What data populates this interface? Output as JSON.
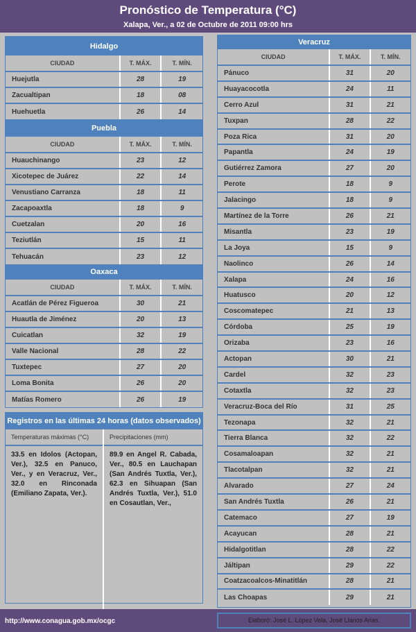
{
  "header": {
    "title": "Pronóstico de Temperatura (°C)",
    "subtitle": "Xalapa, Ver., a 02 de Octubre de 2011 09:00 hrs"
  },
  "columns": {
    "city": "CIUDAD",
    "max": "T. MÁX.",
    "min": "T. MÍN."
  },
  "hidalgo": {
    "name": "Hidalgo",
    "rows": [
      [
        "Huejutla",
        "28",
        "19"
      ],
      [
        "Zacualtipan",
        "18",
        "08"
      ],
      [
        "Huehuetla",
        "26",
        "14"
      ]
    ]
  },
  "puebla": {
    "name": "Puebla",
    "rows": [
      [
        "Huauchinango",
        "23",
        "12"
      ],
      [
        "Xicotepec de Juárez",
        "22",
        "14"
      ],
      [
        "Venustiano Carranza",
        "18",
        "11"
      ],
      [
        "Zacapoaxtla",
        "18",
        "9"
      ],
      [
        "Cuetzalan",
        "20",
        "16"
      ],
      [
        "Teziutlán",
        "15",
        "11"
      ],
      [
        "Tehuacán",
        "23",
        "12"
      ]
    ]
  },
  "oaxaca": {
    "name": "Oaxaca",
    "rows": [
      [
        "Acatlán de Pérez Figueroa",
        "30",
        "21"
      ],
      [
        "Huautla de Jiménez",
        "20",
        "13"
      ],
      [
        "Cuicatlan",
        "32",
        "19"
      ],
      [
        "Valle Nacional",
        "28",
        "22"
      ],
      [
        "Tuxtepec",
        "27",
        "20"
      ],
      [
        "Loma Bonita",
        "26",
        "20"
      ],
      [
        "Matías Romero",
        "26",
        "19"
      ]
    ]
  },
  "veracruz": {
    "name": "Veracruz",
    "rows": [
      [
        "Pánuco",
        "31",
        "20"
      ],
      [
        "Huayacocotla",
        "24",
        "11"
      ],
      [
        "Cerro Azul",
        "31",
        "21"
      ],
      [
        "Tuxpan",
        "28",
        "22"
      ],
      [
        "Poza Rica",
        "31",
        "20"
      ],
      [
        "Papantla",
        "24",
        "19"
      ],
      [
        "Gutiérrez Zamora",
        "27",
        "20"
      ],
      [
        "Perote",
        "18",
        "9"
      ],
      [
        "Jalacingo",
        "18",
        "9"
      ],
      [
        "Martínez de la Torre",
        "26",
        "21"
      ],
      [
        "Misantla",
        "23",
        "19"
      ],
      [
        "La Joya",
        "15",
        "9"
      ],
      [
        "Naolinco",
        "26",
        "14"
      ],
      [
        "Xalapa",
        "24",
        "16"
      ],
      [
        "Huatusco",
        "20",
        "12"
      ],
      [
        "Coscomatepec",
        "21",
        "13"
      ],
      [
        "Córdoba",
        "25",
        "19"
      ],
      [
        "Orizaba",
        "23",
        "16"
      ],
      [
        "Actopan",
        "30",
        "21"
      ],
      [
        "Cardel",
        "32",
        "23"
      ],
      [
        "Cotaxtla",
        "32",
        "23"
      ],
      [
        "Veracruz-Boca del Río",
        "31",
        "25"
      ],
      [
        "Tezonapa",
        "32",
        "21"
      ],
      [
        "Tierra Blanca",
        "32",
        "22"
      ],
      [
        "Cosamaloapan",
        "32",
        "21"
      ],
      [
        "Tlacotalpan",
        "32",
        "21"
      ],
      [
        "Alvarado",
        "27",
        "24"
      ],
      [
        "San Andrés Tuxtla",
        "26",
        "21"
      ],
      [
        "Catemaco",
        "27",
        "19"
      ],
      [
        "Acayucan",
        "28",
        "21"
      ],
      [
        "Hidalgotitlan",
        "28",
        "22"
      ],
      [
        "Jáltipan",
        "29",
        "22"
      ],
      [
        "Coatzacoalcos-Minatitlán",
        "28",
        "21"
      ],
      [
        "Las Choapas",
        "29",
        "21"
      ]
    ]
  },
  "registros": {
    "title": "Registros en las últimas 24 horas (datos observados)",
    "max_label": "Temperaturas máximas (°C)",
    "max_text": "33.5 en Idolos (Actopan, Ver.), 32.5 en Panuco, Ver., y en Veracruz, Ver., 32.0 en Rinconada (Emiliano Zapata, Ver.).",
    "precip_label": "Precipitaciones (mm)",
    "precip_text": "89.9 en Angel R. Cabada, Ver., 80.5 en Lauchapan (San Andrés Tuxtla, Ver.), 62.3 en Sihuapan (San Andrés Tuxtla, Ver.), 51.0 en Cosautlan, Ver.,"
  },
  "footer": {
    "url": "http://www.conagua.gob.mx/ocgc",
    "credit": "Elaboró: José L. López Vela, José Llanos Arias."
  },
  "colors": {
    "header": "#5f4a7c",
    "accent": "#4f81bd",
    "background": "#c0c0c0"
  }
}
